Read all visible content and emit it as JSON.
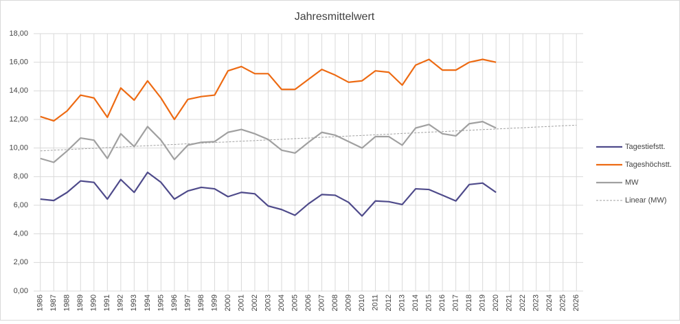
{
  "chart_data": {
    "type": "line",
    "title": "Jahresmittelwert",
    "categories": [
      "1986",
      "1987",
      "1988",
      "1989",
      "1990",
      "1991",
      "1992",
      "1993",
      "1994",
      "1995",
      "1996",
      "1997",
      "1998",
      "1999",
      "2000",
      "2001",
      "2002",
      "2003",
      "2004",
      "2005",
      "2006",
      "2007",
      "2008",
      "2009",
      "2010",
      "2011",
      "2012",
      "2013",
      "2014",
      "2015",
      "2016",
      "2017",
      "2018",
      "2019",
      "2020",
      "2021",
      "2022",
      "2023",
      "2024",
      "2025",
      "2026"
    ],
    "series": [
      {
        "name": "Tagestiefstt.",
        "color": "#4e4a8a",
        "values": [
          6.43,
          6.33,
          6.9,
          7.7,
          7.6,
          6.43,
          7.8,
          6.9,
          8.3,
          7.6,
          6.43,
          7.0,
          7.25,
          7.15,
          6.6,
          6.9,
          6.8,
          5.95,
          5.7,
          5.3,
          6.1,
          6.75,
          6.7,
          6.2,
          5.25,
          6.3,
          6.25,
          6.05,
          7.15,
          7.1,
          6.7,
          6.3,
          7.45,
          7.55,
          6.9,
          null,
          null,
          null,
          null,
          null,
          null
        ]
      },
      {
        "name": "Tageshöchstt.",
        "color": "#ed6a12",
        "values": [
          12.2,
          11.9,
          12.6,
          13.7,
          13.5,
          12.15,
          14.2,
          13.35,
          14.7,
          13.5,
          12.0,
          13.4,
          13.6,
          13.7,
          15.4,
          15.7,
          15.2,
          15.2,
          14.1,
          14.1,
          14.8,
          15.5,
          15.1,
          14.6,
          14.7,
          15.4,
          15.3,
          14.4,
          15.8,
          16.2,
          15.45,
          15.45,
          16.0,
          16.2,
          16.0,
          null,
          null,
          null,
          null,
          null,
          null
        ]
      },
      {
        "name": "MW",
        "color": "#a0a0a0",
        "values": [
          9.27,
          9.0,
          9.8,
          10.7,
          10.55,
          9.27,
          11.0,
          10.1,
          11.5,
          10.55,
          9.2,
          10.2,
          10.4,
          10.45,
          11.1,
          11.3,
          11.0,
          10.6,
          9.85,
          9.65,
          10.4,
          11.1,
          10.9,
          10.45,
          10.0,
          10.8,
          10.8,
          10.2,
          11.4,
          11.65,
          11.0,
          10.85,
          11.7,
          11.85,
          11.4,
          null,
          null,
          null,
          null,
          null,
          null
        ]
      },
      {
        "name": "Linear (MW)",
        "color": "#a0a0a0",
        "dashed": true,
        "values": [
          9.8,
          9.85,
          9.89,
          9.94,
          9.98,
          10.03,
          10.07,
          10.12,
          10.16,
          10.21,
          10.25,
          10.3,
          10.34,
          10.39,
          10.43,
          10.48,
          10.52,
          10.57,
          10.61,
          10.66,
          10.7,
          10.75,
          10.79,
          10.84,
          10.88,
          10.93,
          10.97,
          11.02,
          11.06,
          11.11,
          11.15,
          11.2,
          11.24,
          11.29,
          11.33,
          11.38,
          11.42,
          11.47,
          11.51,
          11.56,
          11.6
        ]
      }
    ],
    "ylim": [
      0,
      18
    ],
    "yticks": [
      {
        "value": 0,
        "label": "0,00"
      },
      {
        "value": 2,
        "label": "2,00"
      },
      {
        "value": 4,
        "label": "4,00"
      },
      {
        "value": 6,
        "label": "6,00"
      },
      {
        "value": 8,
        "label": "8,00"
      },
      {
        "value": 10,
        "label": "10,00"
      },
      {
        "value": 12,
        "label": "12,00"
      },
      {
        "value": 14,
        "label": "14,00"
      },
      {
        "value": 16,
        "label": "16,00"
      },
      {
        "value": 18,
        "label": "18,00"
      }
    ],
    "grid": true,
    "legend": "right"
  }
}
